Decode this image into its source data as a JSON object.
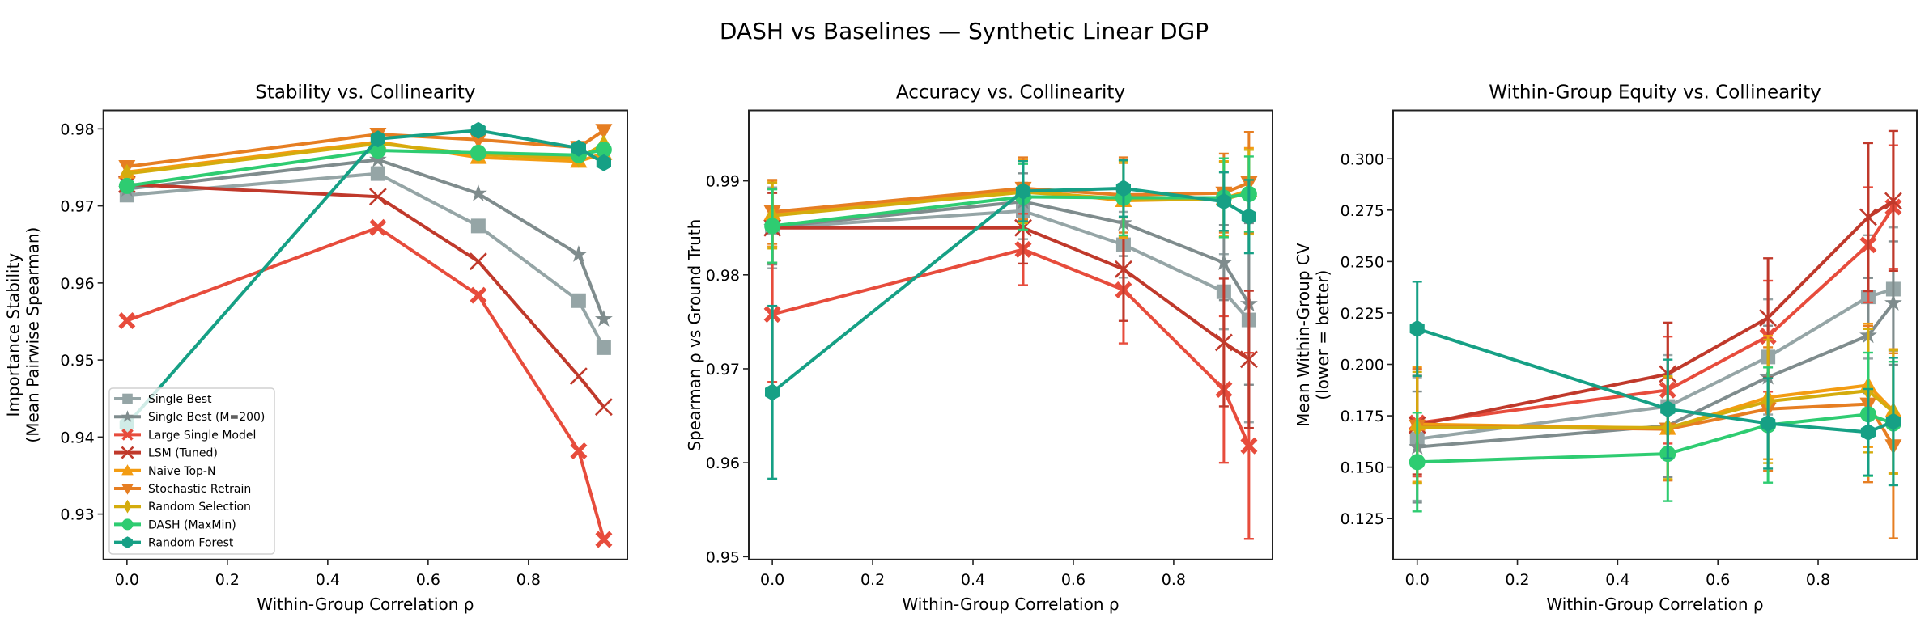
{
  "suptitle": "DASH vs Baselines — Synthetic Linear DGP",
  "series_styles": [
    {
      "name": "Single Best",
      "color": "#95a5a6",
      "marker": "square"
    },
    {
      "name": "Single Best (M=200)",
      "color": "#7f8c8d",
      "marker": "star"
    },
    {
      "name": "Large Single Model",
      "color": "#e74c3c",
      "marker": "filled-x"
    },
    {
      "name": "LSM (Tuned)",
      "color": "#c0392b",
      "marker": "x"
    },
    {
      "name": "Naive Top-N",
      "color": "#f39c12",
      "marker": "triangle-up"
    },
    {
      "name": "Stochastic Retrain",
      "color": "#e67e22",
      "marker": "triangle-down"
    },
    {
      "name": "Random Selection",
      "color": "#d4ac0d",
      "marker": "thin-diamond"
    },
    {
      "name": "DASH (MaxMin)",
      "color": "#2ecc71",
      "marker": "circle"
    },
    {
      "name": "Random Forest",
      "color": "#16a085",
      "marker": "hexagon"
    }
  ],
  "chart_data": [
    {
      "type": "line",
      "title": "Stability vs. Collinearity",
      "xlabel": "Within-Group Correlation ρ",
      "ylabel": [
        "Importance Stability",
        "(Mean Pairwise Spearman)"
      ],
      "x": [
        0.0,
        0.5,
        0.7,
        0.9,
        0.95
      ],
      "xlim": [
        -0.047,
        0.997
      ],
      "ylim": [
        0.9241,
        0.9824
      ],
      "xticks": [
        "0.0",
        "0.2",
        "0.4",
        "0.6",
        "0.8"
      ],
      "yticks": [
        "0.93",
        "0.94",
        "0.95",
        "0.96",
        "0.97",
        "0.98"
      ],
      "grid": false,
      "legend": "lower-left",
      "error_bars": false,
      "series": [
        {
          "name": "Single Best",
          "values": [
            0.9714,
            0.9742,
            0.9674,
            0.9577,
            0.9516
          ]
        },
        {
          "name": "Single Best (M=200)",
          "values": [
            0.9722,
            0.976,
            0.9716,
            0.9637,
            0.9553
          ]
        },
        {
          "name": "Large Single Model",
          "values": [
            0.9551,
            0.9672,
            0.9584,
            0.9382,
            0.9267
          ]
        },
        {
          "name": "LSM (Tuned)",
          "values": [
            0.9728,
            0.9712,
            0.9628,
            0.9479,
            0.9439
          ]
        },
        {
          "name": "Naive Top-N",
          "values": [
            0.9744,
            0.9783,
            0.9763,
            0.9758,
            0.9768
          ]
        },
        {
          "name": "Stochastic Retrain",
          "values": [
            0.9751,
            0.9793,
            0.9786,
            0.9776,
            0.9798
          ]
        },
        {
          "name": "Random Selection",
          "values": [
            0.9742,
            0.9781,
            0.9767,
            0.9762,
            0.978
          ]
        },
        {
          "name": "DASH (MaxMin)",
          "values": [
            0.9726,
            0.9772,
            0.9769,
            0.9766,
            0.9773
          ]
        },
        {
          "name": "Random Forest",
          "values": [
            0.9416,
            0.9787,
            0.9798,
            0.9775,
            0.9756
          ]
        }
      ]
    },
    {
      "type": "line",
      "title": "Accuracy vs. Collinearity",
      "xlabel": "Within-Group Correlation ρ",
      "ylabel": [
        "Spearman ρ vs Ground Truth"
      ],
      "x": [
        0.0,
        0.5,
        0.7,
        0.9,
        0.95
      ],
      "xlim": [
        -0.047,
        0.997
      ],
      "ylim": [
        0.9497,
        0.9975
      ],
      "xticks": [
        "0.0",
        "0.2",
        "0.4",
        "0.6",
        "0.8"
      ],
      "yticks": [
        "0.95",
        "0.96",
        "0.97",
        "0.98",
        "0.99"
      ],
      "grid": false,
      "error_bars": true,
      "series": [
        {
          "name": "Single Best",
          "values": [
            0.985,
            0.9868,
            0.9832,
            0.9782,
            0.9752
          ],
          "err": [
            0.0043,
            0.003,
            0.0035,
            0.004,
            0.0109
          ]
        },
        {
          "name": "Single Best (M=200)",
          "values": [
            0.9851,
            0.9878,
            0.9855,
            0.9813,
            0.9769
          ],
          "err": [
            0.004,
            0.003,
            0.0035,
            0.004,
            0.0086
          ]
        },
        {
          "name": "Large Single Model",
          "values": [
            0.9758,
            0.9827,
            0.9784,
            0.9678,
            0.9618
          ],
          "err": [
            0.0072,
            0.0038,
            0.0057,
            0.0078,
            0.0099
          ]
        },
        {
          "name": "LSM (Tuned)",
          "values": [
            0.985,
            0.985,
            0.9806,
            0.9728,
            0.971
          ],
          "err": [
            0.0037,
            0.0038,
            0.0055,
            0.0068,
            0.0073
          ]
        },
        {
          "name": "Naive Top-N",
          "values": [
            0.9865,
            0.989,
            0.9879,
            0.9881,
            0.989
          ],
          "err": [
            0.0035,
            0.0033,
            0.004,
            0.004,
            0.0045
          ]
        },
        {
          "name": "Stochastic Retrain",
          "values": [
            0.9867,
            0.9892,
            0.9885,
            0.9887,
            0.9898
          ],
          "err": [
            0.0034,
            0.0033,
            0.004,
            0.0042,
            0.0054
          ]
        },
        {
          "name": "Random Selection",
          "values": [
            0.9863,
            0.9888,
            0.9881,
            0.988,
            0.9888
          ],
          "err": [
            0.0035,
            0.0033,
            0.004,
            0.004,
            0.0045
          ]
        },
        {
          "name": "DASH (MaxMin)",
          "values": [
            0.9852,
            0.9883,
            0.9882,
            0.9882,
            0.9886
          ],
          "err": [
            0.0039,
            0.0035,
            0.004,
            0.0042,
            0.004
          ]
        },
        {
          "name": "Random Forest",
          "values": [
            0.9675,
            0.9889,
            0.9892,
            0.9878,
            0.9862
          ],
          "err": [
            0.0092,
            0.0032,
            0.003,
            0.0031,
            0.0039
          ]
        }
      ]
    },
    {
      "type": "line",
      "title": "Within-Group Equity vs. Collinearity",
      "xlabel": "Within-Group Correlation ρ",
      "ylabel": [
        "Mean Within-Group CV",
        "(lower = better)"
      ],
      "x": [
        0.0,
        0.5,
        0.7,
        0.9,
        0.95
      ],
      "xlim": [
        -0.048,
        0.997
      ],
      "ylim": [
        0.1051,
        0.3235
      ],
      "xticks": [
        "0.0",
        "0.2",
        "0.4",
        "0.6",
        "0.8"
      ],
      "yticks": [
        "0.125",
        "0.150",
        "0.175",
        "0.200",
        "0.225",
        "0.250",
        "0.275",
        "0.300"
      ],
      "grid": false,
      "error_bars": true,
      "series": [
        {
          "name": "Single Best",
          "values": [
            0.1637,
            0.1795,
            0.2036,
            0.2328,
            0.2366
          ],
          "err": [
            0.03,
            0.025,
            0.028,
            0.03,
            0.03
          ]
        },
        {
          "name": "Single Best (M=200)",
          "values": [
            0.1598,
            0.1702,
            0.1938,
            0.214,
            0.2298
          ],
          "err": [
            0.027,
            0.025,
            0.025,
            0.028,
            0.03
          ]
        },
        {
          "name": "Large Single Model",
          "values": [
            0.1715,
            0.1875,
            0.2137,
            0.2581,
            0.2765
          ],
          "err": [
            0.026,
            0.026,
            0.027,
            0.028,
            0.03
          ]
        },
        {
          "name": "LSM (Tuned)",
          "values": [
            0.1705,
            0.1953,
            0.2226,
            0.2716,
            0.2795
          ],
          "err": [
            0.024,
            0.025,
            0.029,
            0.036,
            0.034
          ]
        },
        {
          "name": "Naive Top-N",
          "values": [
            0.1709,
            0.1689,
            0.1839,
            0.1898,
            0.1774
          ],
          "err": [
            0.028,
            0.025,
            0.03,
            0.03,
            0.03
          ]
        },
        {
          "name": "Stochastic Retrain",
          "values": [
            0.17,
            0.1685,
            0.1783,
            0.1807,
            0.1604
          ],
          "err": [
            0.028,
            0.025,
            0.03,
            0.038,
            0.045
          ]
        },
        {
          "name": "Random Selection",
          "values": [
            0.1693,
            0.1692,
            0.182,
            0.1872,
            0.1768
          ],
          "err": [
            0.027,
            0.025,
            0.03,
            0.03,
            0.03
          ]
        },
        {
          "name": "DASH (MaxMin)",
          "values": [
            0.1525,
            0.1565,
            0.1705,
            0.1757,
            0.1713
          ],
          "err": [
            0.024,
            0.023,
            0.028,
            0.03,
            0.03
          ]
        },
        {
          "name": "Random Forest",
          "values": [
            0.2173,
            0.1783,
            0.1713,
            0.167,
            0.1722
          ],
          "err": [
            0.0229,
            0.024,
            0.022,
            0.021,
            0.031
          ]
        }
      ]
    }
  ]
}
